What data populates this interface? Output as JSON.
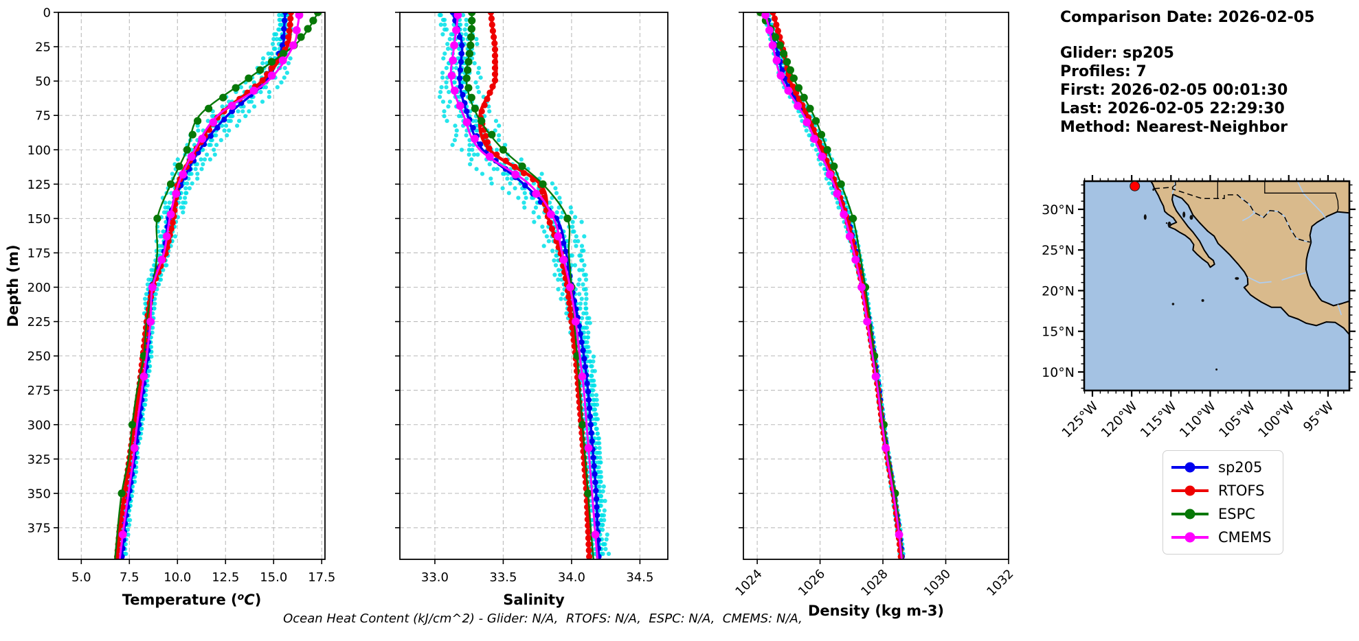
{
  "info_panel": {
    "comparison_date": "Comparison Date: 2026-02-05",
    "glider": "Glider: sp205",
    "profiles": "Profiles: 7",
    "first": "First: 2026-02-05 00:01:30",
    "last": "Last: 2026-02-05 22:29:30",
    "method": "Method: Nearest-Neighbor"
  },
  "footer": "Ocean Heat Content (kJ/cm^2) - Glider: N/A,  RTOFS: N/A,  ESPC: N/A,  CMEMS: N/A,",
  "legend": {
    "items": [
      {
        "label": "sp205",
        "color": "#0000ee"
      },
      {
        "label": "RTOFS",
        "color": "#ee0000"
      },
      {
        "label": "ESPC",
        "color": "#077807"
      },
      {
        "label": "CMEMS",
        "color": "#ff00ff"
      }
    ]
  },
  "colors": {
    "glider_profiles_scatter": "#00e0e8",
    "grid": "#bbbbbb",
    "frame": "#000000"
  },
  "chart_data": [
    {
      "type": "line",
      "title": "",
      "xlabel": "Temperature (°C)",
      "ylabel": "Depth (m)",
      "xlim": [
        3.81,
        17.67
      ],
      "ylim": [
        0,
        398
      ],
      "xticks": [
        5.0,
        7.5,
        10.0,
        12.5,
        15.0,
        17.5
      ],
      "xtick_labels": [
        "5.0",
        "7.5",
        "10.0",
        "12.5",
        "15.0",
        "17.5"
      ],
      "yticks": [
        0,
        25,
        50,
        75,
        100,
        125,
        150,
        175,
        200,
        225,
        250,
        275,
        300,
        325,
        350,
        375
      ],
      "grid": true,
      "depths": [
        0,
        10,
        25,
        50,
        75,
        100,
        125,
        150,
        175,
        200,
        225,
        250,
        275,
        300,
        325,
        350,
        375,
        398
      ],
      "series": [
        {
          "name": "sp205",
          "color": "#0000ee",
          "values": [
            15.6,
            15.55,
            15.45,
            14.6,
            12.6,
            11.15,
            10.2,
            9.55,
            9.3,
            8.65,
            8.5,
            8.45,
            8.2,
            8.0,
            7.75,
            7.5,
            7.25,
            7.1
          ]
        },
        {
          "name": "RTOFS",
          "color": "#ee0000",
          "values": [
            15.9,
            15.85,
            15.7,
            14.4,
            12.15,
            10.95,
            10.0,
            9.8,
            9.4,
            8.7,
            8.4,
            8.2,
            8.0,
            7.75,
            7.5,
            7.25,
            7.0,
            6.85
          ]
        },
        {
          "name": "ESPC",
          "color": "#077807",
          "values": [
            17.3,
            16.9,
            16.0,
            13.5,
            11.15,
            10.5,
            9.65,
            8.95,
            8.95,
            8.7,
            8.4,
            8.25,
            7.9,
            7.65,
            7.45,
            7.1,
            6.9,
            6.75
          ]
        },
        {
          "name": "CMEMS",
          "color": "#ff00ff",
          "values": [
            16.35,
            16.25,
            16.0,
            14.7,
            12.1,
            10.9,
            10.05,
            9.6,
            9.3,
            8.7,
            8.6,
            8.4,
            8.15,
            7.9,
            7.7,
            7.45,
            7.2,
            7.0
          ]
        }
      ],
      "scatter_halfwidth": [
        0.25,
        0.35,
        0.45,
        0.8,
        0.9,
        0.75,
        0.55,
        0.45,
        0.35,
        0.3,
        0.28,
        0.25,
        0.25,
        0.22,
        0.22,
        0.2,
        0.2,
        0.2
      ]
    },
    {
      "type": "line",
      "title": "",
      "xlabel": "Salinity",
      "ylabel": "",
      "xlim": [
        32.744,
        34.704
      ],
      "ylim": [
        0,
        398
      ],
      "xticks": [
        33.0,
        33.5,
        34.0,
        34.5
      ],
      "xtick_labels": [
        "33.0",
        "33.5",
        "34.0",
        "34.5"
      ],
      "yticks": [
        0,
        25,
        50,
        75,
        100,
        125,
        150,
        175,
        200,
        225,
        250,
        275,
        300,
        325,
        350,
        375
      ],
      "grid": true,
      "depths": [
        0,
        10,
        25,
        50,
        75,
        100,
        125,
        150,
        175,
        200,
        225,
        250,
        275,
        300,
        325,
        350,
        375,
        398
      ],
      "series": [
        {
          "name": "sp205",
          "color": "#0000ee",
          "values": [
            33.13,
            33.16,
            33.2,
            33.18,
            33.24,
            33.35,
            33.65,
            33.89,
            33.96,
            34.0,
            34.05,
            34.09,
            34.12,
            34.14,
            34.16,
            34.18,
            34.19,
            34.2
          ]
        },
        {
          "name": "RTOFS",
          "color": "#ee0000",
          "values": [
            33.41,
            33.42,
            33.44,
            33.44,
            33.33,
            33.4,
            33.77,
            33.83,
            33.92,
            33.97,
            34.0,
            34.03,
            34.05,
            34.07,
            34.09,
            34.11,
            34.12,
            34.13
          ]
        },
        {
          "name": "ESPC",
          "color": "#077807",
          "values": [
            33.27,
            33.27,
            33.26,
            33.23,
            33.31,
            33.5,
            33.79,
            33.97,
            33.98,
            34.0,
            34.02,
            34.04,
            34.06,
            34.08,
            34.1,
            34.12,
            34.14,
            34.16
          ]
        },
        {
          "name": "CMEMS",
          "color": "#ff00ff",
          "values": [
            33.17,
            33.16,
            33.14,
            33.12,
            33.21,
            33.33,
            33.69,
            33.87,
            33.93,
            33.99,
            34.03,
            34.06,
            34.09,
            34.11,
            34.13,
            34.15,
            34.17,
            34.19
          ]
        }
      ],
      "scatter_halfwidth": [
        0.09,
        0.1,
        0.1,
        0.12,
        0.13,
        0.15,
        0.17,
        0.15,
        0.12,
        0.1,
        0.08,
        0.07,
        0.065,
        0.06,
        0.06,
        0.06,
        0.06,
        0.06
      ]
    },
    {
      "type": "line",
      "title": "",
      "xlabel": "Density (kg m-3)",
      "ylabel": "",
      "xlim": [
        1023.56,
        1032.0
      ],
      "ylim": [
        0,
        398
      ],
      "xticks": [
        1024,
        1026,
        1028,
        1030,
        1032
      ],
      "xtick_labels": [
        "1024",
        "1026",
        "1028",
        "1030",
        "1032"
      ],
      "xtick_rotation": 45,
      "yticks": [
        0,
        25,
        50,
        75,
        100,
        125,
        150,
        175,
        200,
        225,
        250,
        275,
        300,
        325,
        350,
        375
      ],
      "grid": true,
      "depths": [
        0,
        10,
        25,
        50,
        75,
        100,
        125,
        150,
        175,
        200,
        225,
        250,
        275,
        300,
        325,
        350,
        375,
        398
      ],
      "series": [
        {
          "name": "sp205",
          "color": "#0000ee",
          "values": [
            1024.27,
            1024.4,
            1024.6,
            1024.9,
            1025.55,
            1026.05,
            1026.46,
            1026.89,
            1027.15,
            1027.38,
            1027.56,
            1027.72,
            1027.88,
            1028.0,
            1028.17,
            1028.35,
            1028.5,
            1028.62
          ]
        },
        {
          "name": "RTOFS",
          "color": "#ee0000",
          "values": [
            1024.5,
            1024.62,
            1024.8,
            1025.05,
            1025.6,
            1026.07,
            1026.5,
            1026.85,
            1027.12,
            1027.35,
            1027.53,
            1027.69,
            1027.85,
            1027.98,
            1028.15,
            1028.34,
            1028.48,
            1028.58
          ]
        },
        {
          "name": "ESPC",
          "color": "#077807",
          "values": [
            1024.1,
            1024.38,
            1024.75,
            1025.2,
            1025.8,
            1026.23,
            1026.67,
            1027.05,
            1027.26,
            1027.44,
            1027.6,
            1027.73,
            1027.88,
            1028.03,
            1028.2,
            1028.39,
            1028.52,
            1028.63
          ]
        },
        {
          "name": "CMEMS",
          "color": "#ff00ff",
          "values": [
            1024.24,
            1024.36,
            1024.5,
            1024.8,
            1025.48,
            1025.97,
            1026.44,
            1026.8,
            1027.08,
            1027.32,
            1027.5,
            1027.67,
            1027.84,
            1027.98,
            1028.14,
            1028.33,
            1028.49,
            1028.6
          ]
        }
      ],
      "scatter_halfwidth": [
        0.08,
        0.09,
        0.1,
        0.12,
        0.15,
        0.18,
        0.15,
        0.12,
        0.1,
        0.08,
        0.07,
        0.06,
        0.06,
        0.06,
        0.06,
        0.06,
        0.06,
        0.06
      ]
    }
  ],
  "glider_scatter": {
    "profiles": 7,
    "base_series": "sp205",
    "depth_step": 3.5,
    "max_depth": 396
  },
  "map": {
    "extent": {
      "lon": [
        -126.05,
        -92.28
      ],
      "lat": [
        7.72,
        33.46
      ]
    },
    "xticks": [
      -125,
      -120,
      -115,
      -110,
      -105,
      -100,
      -95
    ],
    "xtick_labels": [
      "125°W",
      "120°W",
      "115°W",
      "110°W",
      "105°W",
      "100°W",
      "95°W"
    ],
    "yticks": [
      10,
      15,
      20,
      25,
      30
    ],
    "ytick_labels": [
      "10°N",
      "15°N",
      "20°N",
      "25°N",
      "30°N"
    ],
    "land_color": "#d9ba8c",
    "ocean_color": "#a4c2e3",
    "river_color": "#aecdf0",
    "glider_marker": {
      "lon": -119.6,
      "lat": 32.85,
      "color": "#ff0000"
    },
    "land_polygon": [
      [
        -117.55,
        33.46
      ],
      [
        -117.3,
        33.05
      ],
      [
        -117.13,
        32.6
      ],
      [
        -116.9,
        32.2
      ],
      [
        -116.6,
        31.7
      ],
      [
        -116.3,
        31.05
      ],
      [
        -115.95,
        30.4
      ],
      [
        -115.8,
        29.75
      ],
      [
        -115.4,
        29.4
      ],
      [
        -114.7,
        28.95
      ],
      [
        -114.3,
        28.4
      ],
      [
        -114.9,
        28.15
      ],
      [
        -115.25,
        27.85
      ],
      [
        -114.5,
        27.55
      ],
      [
        -113.85,
        27.15
      ],
      [
        -113.2,
        26.8
      ],
      [
        -112.55,
        26.3
      ],
      [
        -112.1,
        25.65
      ],
      [
        -112.2,
        25.0
      ],
      [
        -111.65,
        24.45
      ],
      [
        -111.0,
        23.9
      ],
      [
        -110.3,
        23.4
      ],
      [
        -110.0,
        22.88
      ],
      [
        -109.45,
        23.25
      ],
      [
        -109.6,
        23.7
      ],
      [
        -110.2,
        24.15
      ],
      [
        -110.35,
        24.4
      ],
      [
        -110.75,
        24.95
      ],
      [
        -111.35,
        26.1
      ],
      [
        -112.2,
        27.2
      ],
      [
        -112.85,
        27.9
      ],
      [
        -113.5,
        28.75
      ],
      [
        -114.3,
        29.8
      ],
      [
        -114.65,
        30.5
      ],
      [
        -114.85,
        31.2
      ],
      [
        -114.75,
        31.85
      ],
      [
        -114.1,
        31.55
      ],
      [
        -113.6,
        31.35
      ],
      [
        -112.8,
        30.5
      ],
      [
        -112.2,
        29.3
      ],
      [
        -111.4,
        28.4
      ],
      [
        -110.9,
        27.9
      ],
      [
        -110.3,
        27.3
      ],
      [
        -109.5,
        26.7
      ],
      [
        -109.0,
        25.8
      ],
      [
        -108.35,
        25.2
      ],
      [
        -107.5,
        24.4
      ],
      [
        -106.4,
        23.2
      ],
      [
        -105.65,
        22.3
      ],
      [
        -105.25,
        21.6
      ],
      [
        -105.2,
        20.75
      ],
      [
        -105.68,
        20.4
      ],
      [
        -104.9,
        19.5
      ],
      [
        -104.3,
        19.1
      ],
      [
        -103.5,
        18.6
      ],
      [
        -102.2,
        17.95
      ],
      [
        -101.0,
        17.95
      ],
      [
        -100.0,
        16.9
      ],
      [
        -98.8,
        16.5
      ],
      [
        -97.8,
        16.0
      ],
      [
        -96.5,
        15.7
      ],
      [
        -95.2,
        16.15
      ],
      [
        -94.1,
        16.1
      ],
      [
        -93.0,
        15.4
      ],
      [
        -92.28,
        14.6
      ],
      [
        -92.28,
        18.72
      ],
      [
        -93.2,
        18.43
      ],
      [
        -94.3,
        18.15
      ],
      [
        -95.0,
        18.45
      ],
      [
        -95.8,
        18.75
      ],
      [
        -96.1,
        19.1
      ],
      [
        -96.6,
        19.85
      ],
      [
        -97.2,
        20.6
      ],
      [
        -97.5,
        21.5
      ],
      [
        -97.8,
        22.6
      ],
      [
        -97.75,
        23.8
      ],
      [
        -97.6,
        24.5
      ],
      [
        -97.15,
        25.95
      ],
      [
        -97.3,
        26.8
      ],
      [
        -97.05,
        27.9
      ],
      [
        -96.4,
        28.4
      ],
      [
        -95.1,
        29.15
      ],
      [
        -93.8,
        29.7
      ],
      [
        -92.28,
        29.55
      ],
      [
        -92.28,
        33.46
      ]
    ],
    "border_dashed": [
      [
        -117.13,
        32.55
      ],
      [
        -114.8,
        32.72
      ],
      [
        -114.8,
        32.5
      ],
      [
        -111.07,
        31.33
      ],
      [
        -108.21,
        31.33
      ],
      [
        -108.21,
        31.78
      ],
      [
        -106.53,
        31.78
      ],
      [
        -106.1,
        31.4
      ],
      [
        -105.0,
        30.6
      ],
      [
        -104.4,
        29.6
      ],
      [
        -103.2,
        29.0
      ],
      [
        -102.4,
        29.85
      ],
      [
        -101.4,
        29.75
      ],
      [
        -100.6,
        29.2
      ],
      [
        -99.8,
        27.6
      ],
      [
        -99.0,
        26.4
      ],
      [
        -97.8,
        26.06
      ],
      [
        -97.15,
        25.95
      ]
    ],
    "state_lines": [
      [
        [
          -114.45,
          33.46
        ],
        [
          -114.4,
          33.0
        ],
        [
          -114.65,
          32.85
        ],
        [
          -114.8,
          32.72
        ]
      ],
      [
        [
          -109.05,
          33.46
        ],
        [
          -109.05,
          31.33
        ]
      ],
      [
        [
          -103.06,
          33.46
        ],
        [
          -103.06,
          32.0
        ],
        [
          -94.04,
          32.0
        ],
        [
          -93.75,
          31.0
        ],
        [
          -93.7,
          30.1
        ],
        [
          -93.85,
          29.7
        ]
      ]
    ],
    "rivers": [
      [
        [
          -114.45,
          33.46
        ],
        [
          -114.55,
          33.0
        ],
        [
          -114.5,
          32.6
        ],
        [
          -114.8,
          32.1
        ],
        [
          -114.78,
          31.87
        ]
      ],
      [
        [
          -98.9,
          33.46
        ],
        [
          -98.1,
          31.9
        ],
        [
          -96.9,
          30.7
        ],
        [
          -95.7,
          29.5
        ],
        [
          -95.35,
          28.95
        ]
      ],
      [
        [
          -105.9,
          28.6
        ],
        [
          -105.1,
          29.0
        ],
        [
          -104.4,
          29.55
        ]
      ],
      [
        [
          -106.53,
          31.78
        ],
        [
          -105.0,
          30.6
        ],
        [
          -104.4,
          29.6
        ],
        [
          -103.2,
          29.0
        ],
        [
          -102.4,
          29.85
        ],
        [
          -101.4,
          29.75
        ],
        [
          -100.6,
          29.2
        ],
        [
          -99.8,
          27.6
        ],
        [
          -99.0,
          26.4
        ],
        [
          -97.8,
          26.06
        ],
        [
          -97.15,
          25.95
        ]
      ],
      [
        [
          -100.9,
          21.3
        ],
        [
          -99.3,
          21.8
        ],
        [
          -97.85,
          22.2
        ]
      ],
      [
        [
          -102.2,
          21.1
        ],
        [
          -103.7,
          20.95
        ],
        [
          -105.2,
          21.65
        ]
      ],
      [
        [
          -93.3,
          17.0
        ],
        [
          -93.75,
          18.3
        ]
      ]
    ],
    "islands": [
      [
        -118.28,
        29.05,
        2,
        4
      ],
      [
        -115.2,
        28.15,
        2.5,
        4
      ],
      [
        -113.35,
        29.35,
        2,
        4.5
      ],
      [
        -112.4,
        29.0,
        2.5,
        3.5
      ],
      [
        -106.6,
        21.5,
        3,
        2
      ],
      [
        -110.95,
        18.78,
        2,
        2
      ],
      [
        -114.73,
        18.35,
        1.8,
        1.8
      ],
      [
        -109.2,
        10.3,
        1.5,
        1.5
      ],
      [
        -117.25,
        32.42,
        1.2,
        1.8
      ],
      [
        -115.55,
        28.3,
        1.2,
        1.2
      ]
    ]
  }
}
